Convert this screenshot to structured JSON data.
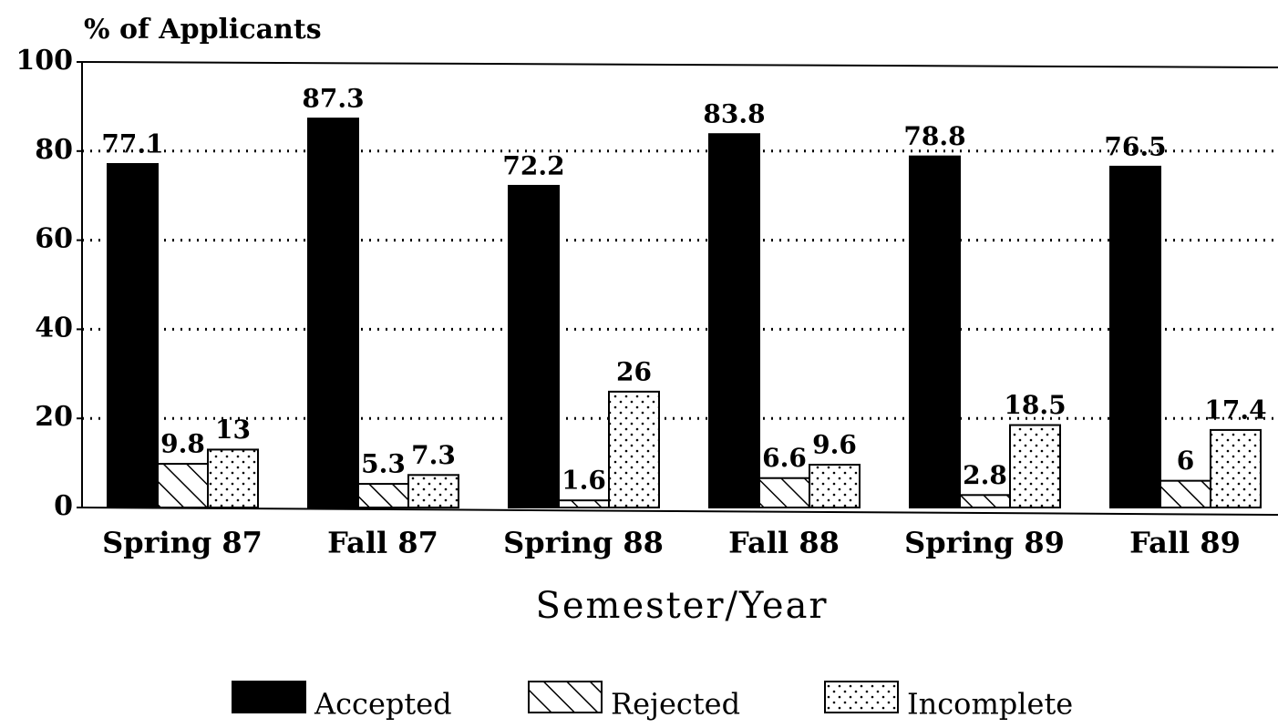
{
  "chart_data": {
    "type": "bar",
    "y_label": "% of Applicants",
    "x_label": "Semester/Year",
    "categories": [
      "Spring 87",
      "Fall 87",
      "Spring 88",
      "Fall 88",
      "Spring 89",
      "Fall 89"
    ],
    "series": [
      {
        "name": "Accepted",
        "color": "#000000",
        "pattern": "solid",
        "values": [
          77.1,
          87.3,
          72.2,
          83.8,
          78.8,
          76.5
        ]
      },
      {
        "name": "Rejected",
        "color": "#000000",
        "pattern": "hatch",
        "values": [
          9.8,
          5.3,
          1.6,
          6.6,
          2.8,
          6
        ]
      },
      {
        "name": "Incomplete",
        "color": "#000000",
        "pattern": "dots",
        "values": [
          13,
          7.3,
          26,
          9.6,
          18.5,
          17.4
        ]
      }
    ],
    "ylim": [
      0,
      100
    ],
    "yticks": [
      0,
      20,
      40,
      60,
      80,
      100
    ],
    "grid": true,
    "legend": "bottom"
  }
}
